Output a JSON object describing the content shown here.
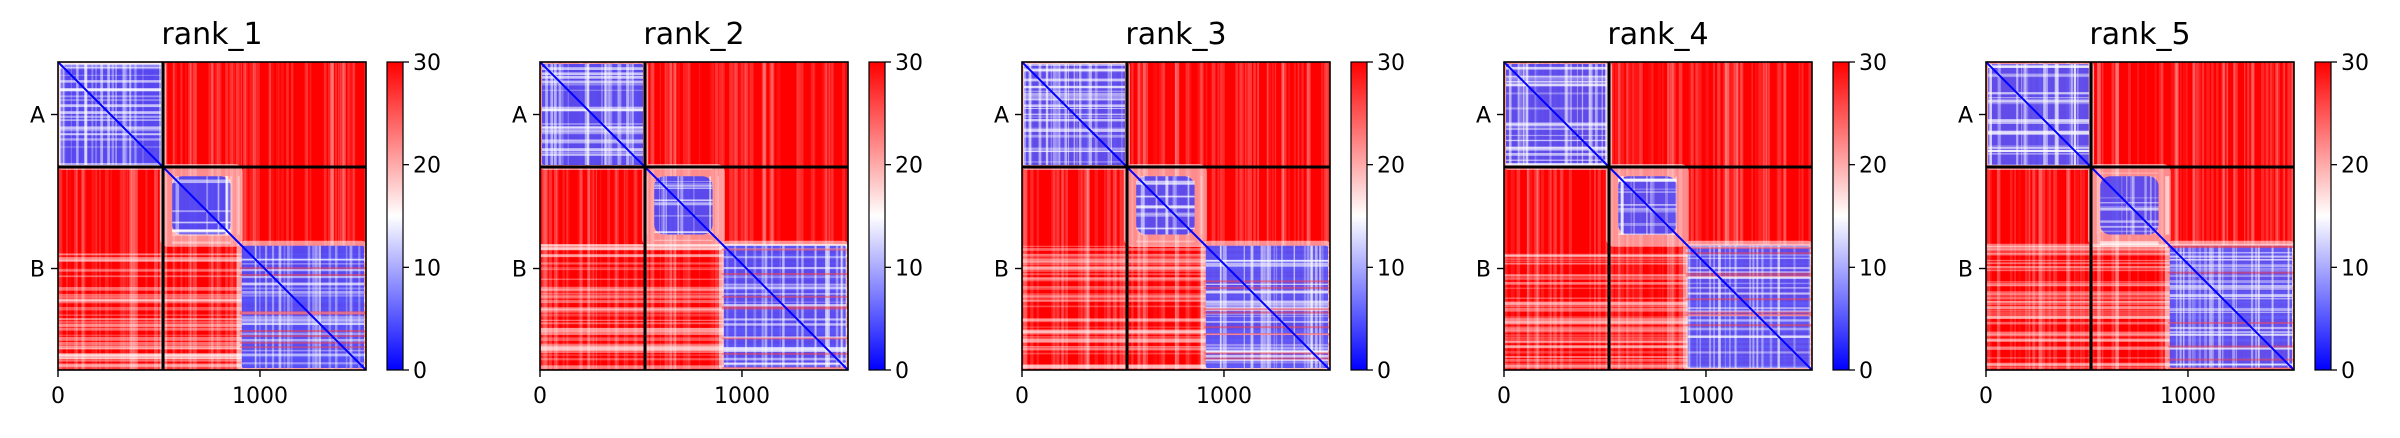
{
  "chart_data": [
    {
      "type": "heatmap",
      "title": "rank_1",
      "chains": [
        "A",
        "B"
      ],
      "chain_boundary": 520,
      "xlim": [
        0,
        1525
      ],
      "xticks": [
        0,
        1000
      ],
      "colorbar": {
        "min": 0,
        "max": 30,
        "ticks": [
          0,
          10,
          20,
          30
        ],
        "colors": [
          "#0000ff",
          "#ffffff",
          "#ff0000"
        ]
      },
      "domains": [
        [
          0,
          520
        ],
        [
          520,
          900
        ],
        [
          900,
          1525
        ]
      ],
      "blue_fill": 0.6
    },
    {
      "type": "heatmap",
      "title": "rank_2",
      "chains": [
        "A",
        "B"
      ],
      "chain_boundary": 520,
      "xlim": [
        0,
        1525
      ],
      "xticks": [
        0,
        1000
      ],
      "colorbar": {
        "min": 0,
        "max": 30,
        "ticks": [
          0,
          10,
          20,
          30
        ],
        "colors": [
          "#0000ff",
          "#ffffff",
          "#ff0000"
        ]
      },
      "domains": [
        [
          0,
          520
        ],
        [
          520,
          900
        ],
        [
          900,
          1525
        ]
      ],
      "blue_fill": 0.58
    },
    {
      "type": "heatmap",
      "title": "rank_3",
      "chains": [
        "A",
        "B"
      ],
      "chain_boundary": 520,
      "xlim": [
        0,
        1525
      ],
      "xticks": [
        0,
        1000
      ],
      "colorbar": {
        "min": 0,
        "max": 30,
        "ticks": [
          0,
          10,
          20,
          30
        ],
        "colors": [
          "#0000ff",
          "#ffffff",
          "#ff0000"
        ]
      },
      "domains": [
        [
          0,
          520
        ],
        [
          520,
          900
        ],
        [
          900,
          1525
        ]
      ],
      "blue_fill": 0.56
    },
    {
      "type": "heatmap",
      "title": "rank_4",
      "chains": [
        "A",
        "B"
      ],
      "chain_boundary": 520,
      "xlim": [
        0,
        1525
      ],
      "xticks": [
        0,
        1000
      ],
      "colorbar": {
        "min": 0,
        "max": 30,
        "ticks": [
          0,
          10,
          20,
          30
        ],
        "colors": [
          "#0000ff",
          "#ffffff",
          "#ff0000"
        ]
      },
      "domains": [
        [
          0,
          520
        ],
        [
          520,
          900
        ],
        [
          900,
          1525
        ]
      ],
      "blue_fill": 0.56
    },
    {
      "type": "heatmap",
      "title": "rank_5",
      "chains": [
        "A",
        "B"
      ],
      "chain_boundary": 520,
      "xlim": [
        0,
        1525
      ],
      "xticks": [
        0,
        1000
      ],
      "colorbar": {
        "min": 0,
        "max": 30,
        "ticks": [
          0,
          10,
          20,
          30
        ],
        "colors": [
          "#0000ff",
          "#ffffff",
          "#ff0000"
        ]
      },
      "domains": [
        [
          0,
          520
        ],
        [
          520,
          900
        ],
        [
          900,
          1525
        ]
      ],
      "blue_fill": 0.55
    }
  ]
}
